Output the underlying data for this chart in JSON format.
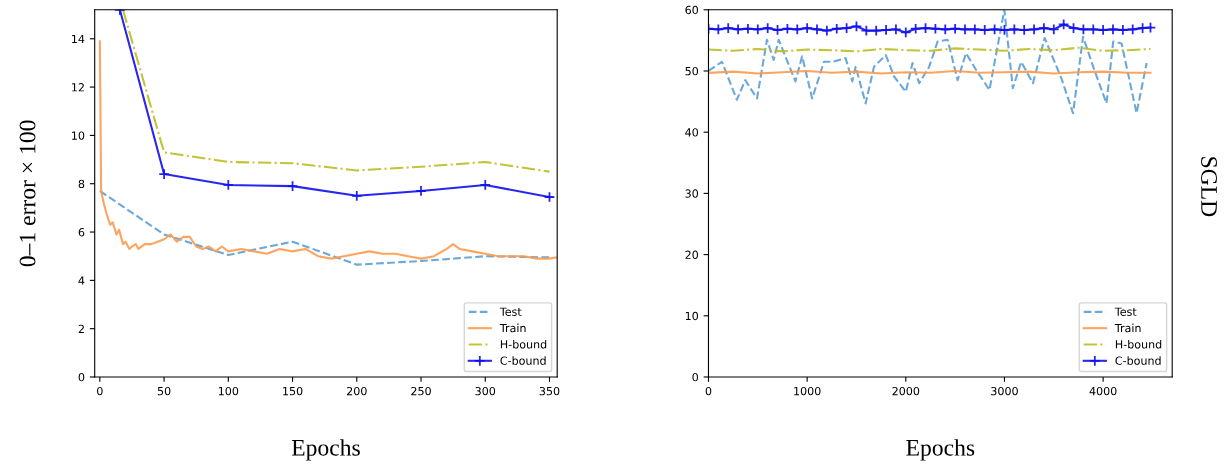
{
  "chart_data": [
    {
      "type": "line",
      "ylabel": "0–1 error × 100",
      "xlabel": "Epochs",
      "xlim": [
        -4,
        356
      ],
      "ylim": [
        0,
        15.2
      ],
      "xticks": [
        0,
        50,
        100,
        150,
        200,
        250,
        300,
        350
      ],
      "yticks": [
        0,
        2,
        4,
        6,
        8,
        10,
        12,
        14
      ],
      "legend": "lower right",
      "grid": false,
      "series": [
        {
          "name": "Test",
          "color": "#5b9fd6",
          "line_style": "dashed",
          "marker": "none",
          "x": [
            0,
            50,
            100,
            150,
            200,
            250,
            300,
            350
          ],
          "values": [
            7.7,
            5.9,
            5.05,
            5.6,
            4.65,
            4.8,
            5.0,
            4.95
          ]
        },
        {
          "name": "Train",
          "color": "#ff9a4d",
          "line_style": "solid",
          "marker": "none",
          "x": [
            0,
            1,
            3,
            5,
            8,
            10,
            13,
            15,
            18,
            20,
            23,
            25,
            28,
            30,
            35,
            40,
            45,
            50,
            55,
            60,
            65,
            70,
            75,
            80,
            85,
            90,
            95,
            100,
            110,
            120,
            130,
            140,
            150,
            160,
            170,
            180,
            190,
            200,
            210,
            220,
            230,
            240,
            250,
            260,
            270,
            275,
            280,
            290,
            300,
            310,
            320,
            330,
            340,
            350,
            355
          ],
          "values": [
            13.9,
            7.7,
            7.2,
            6.8,
            6.3,
            6.4,
            5.9,
            6.1,
            5.5,
            5.6,
            5.3,
            5.4,
            5.5,
            5.3,
            5.5,
            5.5,
            5.6,
            5.7,
            5.9,
            5.6,
            5.8,
            5.8,
            5.4,
            5.3,
            5.4,
            5.2,
            5.4,
            5.2,
            5.3,
            5.2,
            5.1,
            5.3,
            5.2,
            5.3,
            5.0,
            4.9,
            5.0,
            5.1,
            5.2,
            5.1,
            5.1,
            5.0,
            4.9,
            5.0,
            5.3,
            5.5,
            5.3,
            5.2,
            5.1,
            5.0,
            5.0,
            5.0,
            4.9,
            4.9,
            4.95
          ]
        },
        {
          "name": "H-bound",
          "color": "#bcbd22",
          "line_style": "dashdot",
          "marker": "none",
          "x": [
            18,
            50,
            100,
            150,
            200,
            250,
            300,
            350
          ],
          "values": [
            15.2,
            9.3,
            8.9,
            8.85,
            8.55,
            8.7,
            8.9,
            8.5
          ]
        },
        {
          "name": "C-bound",
          "color": "#1010f0",
          "line_style": "solid",
          "marker": "cross",
          "x": [
            15.6,
            50,
            100,
            150,
            200,
            250,
            300,
            350
          ],
          "values": [
            15.2,
            8.4,
            7.95,
            7.9,
            7.5,
            7.7,
            7.95,
            7.45
          ]
        }
      ]
    },
    {
      "type": "line",
      "xlabel": "Epochs",
      "xlim": [
        0,
        4700
      ],
      "ylim": [
        0,
        60
      ],
      "xticks": [
        0,
        1000,
        2000,
        3000,
        4000
      ],
      "yticks": [
        0,
        10,
        20,
        30,
        40,
        50,
        60
      ],
      "legend": "lower right",
      "grid": false,
      "annotations": [
        "SGLD"
      ],
      "series": [
        {
          "name": "Test",
          "color": "#5b9fd6",
          "line_style": "dashed",
          "marker": "none",
          "x": [
            0,
            136,
            288,
            373,
            492,
            593,
            661,
            712,
            881,
            949,
            1051,
            1170,
            1254,
            1390,
            1458,
            1492,
            1593,
            1678,
            1797,
            1881,
            2000,
            2068,
            2136,
            2237,
            2322,
            2424,
            2525,
            2610,
            2712,
            2848,
            2999,
            3085,
            3170,
            3289,
            3407,
            3577,
            3695,
            3797,
            3899,
            4034,
            4102,
            4187,
            4339,
            4441
          ],
          "values": [
            50,
            51.5,
            45.3,
            48.5,
            45.5,
            55.1,
            51.8,
            55.1,
            48.3,
            52.4,
            45.5,
            51.5,
            51.5,
            52.1,
            48.3,
            50.7,
            44.7,
            50.7,
            52.6,
            49.1,
            46.6,
            51.3,
            48.0,
            50.7,
            54.8,
            55.1,
            48.5,
            52.9,
            50.2,
            46.9,
            60,
            47.2,
            51.5,
            48.0,
            55.4,
            48.8,
            43.1,
            55.6,
            50.7,
            44.7,
            54.8,
            54.5,
            43.1,
            51.3
          ]
        },
        {
          "name": "Train",
          "color": "#ff9a4d",
          "line_style": "solid",
          "marker": "none",
          "x": [
            0,
            250,
            500,
            750,
            1000,
            1250,
            1500,
            1750,
            2000,
            2250,
            2500,
            2750,
            3000,
            3250,
            3500,
            3750,
            4000,
            4250,
            4480
          ],
          "values": [
            49.7,
            49.9,
            49.6,
            49.8,
            50.0,
            49.7,
            49.9,
            49.6,
            49.8,
            49.7,
            50.0,
            49.7,
            49.8,
            49.9,
            49.6,
            49.8,
            49.9,
            49.7,
            49.7
          ]
        },
        {
          "name": "H-bound",
          "color": "#bcbd22",
          "line_style": "dashdot",
          "marker": "none",
          "x": [
            0,
            250,
            500,
            750,
            1000,
            1250,
            1500,
            1750,
            2000,
            2250,
            2500,
            2750,
            3000,
            3250,
            3500,
            3750,
            4000,
            4250,
            4480
          ],
          "values": [
            53.5,
            53.3,
            53.6,
            53.2,
            53.5,
            53.4,
            53.2,
            53.6,
            53.4,
            53.3,
            53.7,
            53.5,
            53.3,
            53.6,
            53.4,
            53.8,
            53.3,
            53.4,
            53.6
          ]
        },
        {
          "name": "C-bound",
          "color": "#1010f0",
          "line_style": "solid",
          "marker": "cross",
          "x": [
            0,
            100,
            200,
            300,
            400,
            500,
            600,
            700,
            800,
            900,
            1000,
            1100,
            1200,
            1300,
            1400,
            1500,
            1600,
            1700,
            1800,
            1900,
            2000,
            2100,
            2200,
            2300,
            2400,
            2500,
            2600,
            2700,
            2800,
            2900,
            3000,
            3100,
            3200,
            3300,
            3400,
            3500,
            3600,
            3700,
            3800,
            3900,
            4000,
            4100,
            4200,
            4300,
            4400,
            4480
          ],
          "values": [
            56.9,
            56.8,
            57.0,
            56.8,
            56.9,
            56.8,
            57.0,
            56.7,
            56.9,
            56.8,
            57.0,
            56.8,
            56.6,
            56.9,
            57.0,
            57.3,
            56.6,
            56.6,
            56.7,
            56.8,
            56.3,
            56.9,
            57.0,
            56.9,
            56.8,
            56.9,
            56.8,
            56.8,
            56.7,
            56.8,
            56.7,
            56.8,
            56.7,
            56.8,
            57.0,
            56.8,
            57.6,
            57.0,
            56.8,
            56.8,
            56.7,
            56.8,
            56.7,
            56.8,
            57.0,
            57.1
          ]
        }
      ]
    }
  ]
}
